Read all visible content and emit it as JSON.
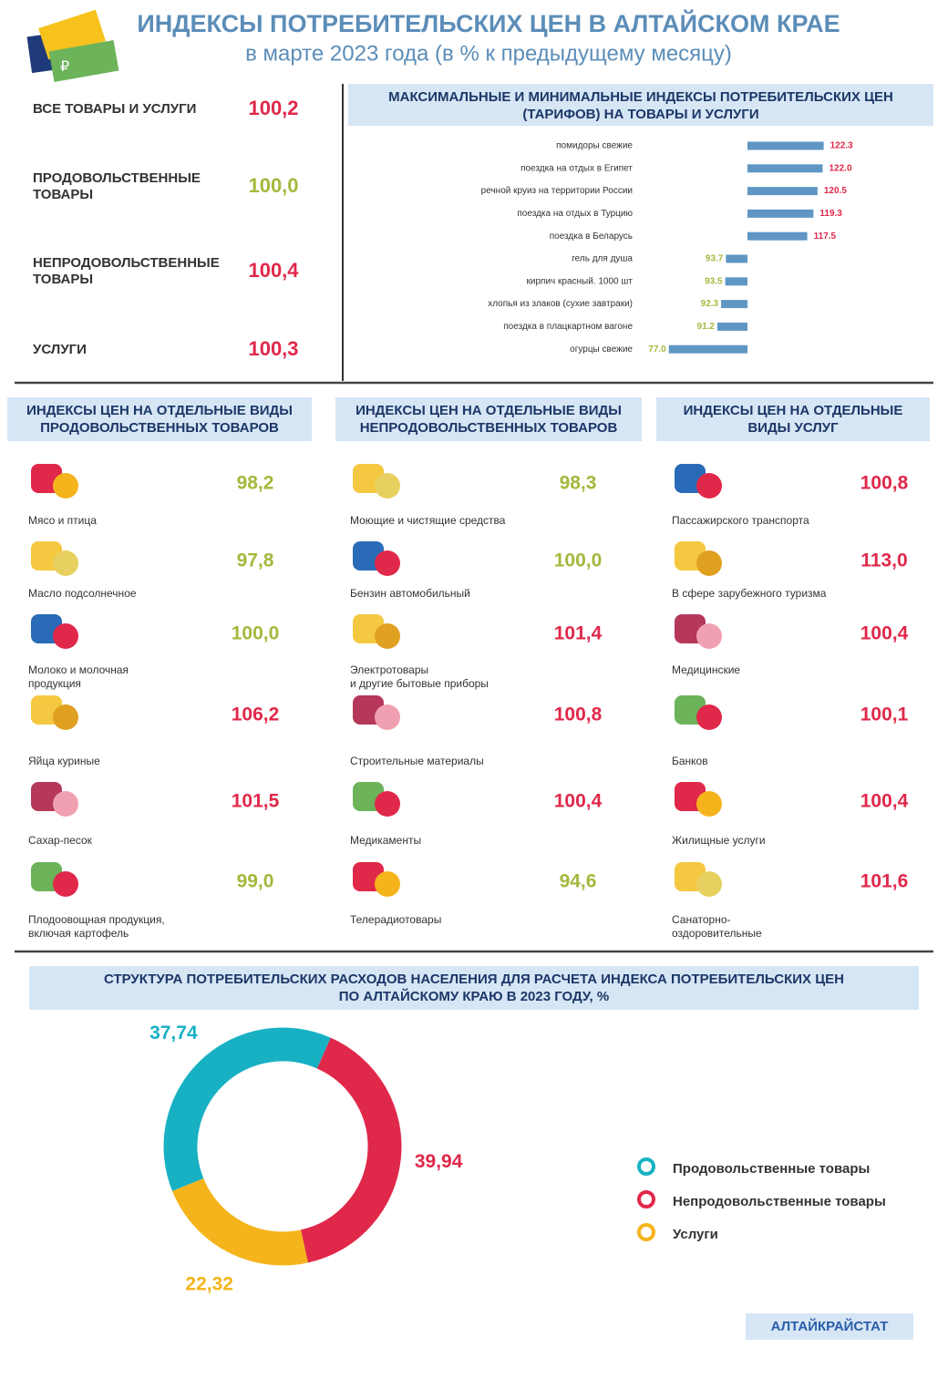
{
  "header": {
    "title": "ИНДЕКСЫ ПОТРЕБИТЕЛЬСКИХ ЦЕН  В  АЛТАЙСКОМ КРАЕ",
    "subtitle": "в марте 2023 года (в % к предыдущему месяцу)"
  },
  "summary": {
    "items": [
      {
        "label": [
          "ВСЕ ТОВАРЫ И УСЛУГИ"
        ],
        "value": "100,2",
        "color": "#e0284a"
      },
      {
        "label": [
          "ПРОДОВОЛЬСТВЕННЫЕ",
          "ТОВАРЫ"
        ],
        "value": "100,0",
        "color": "#a4b83c"
      },
      {
        "label": [
          "НЕПРОДОВОЛЬСТВЕННЫЕ",
          "ТОВАРЫ"
        ],
        "value": "100,4",
        "color": "#e0284a"
      },
      {
        "label": [
          "УСЛУГИ"
        ],
        "value": "100,3",
        "color": "#e0284a"
      }
    ]
  },
  "chart_data": [
    {
      "type": "bar",
      "orientation": "horizontal",
      "title": [
        "МАКСИМАЛЬНЫЕ И МИНИМАЛЬНЫЕ ИНДЕКСЫ  ПОТРЕБИТЕЛЬСКИХ ЦЕН",
        "(ТАРИФОВ) НА ТОВАРЫ  И УСЛУГИ"
      ],
      "categories": [
        "помидоры   свежие",
        "поездка  на отдых в Египет",
        "речной  круиз на территории России",
        "поездка  на отдых  в Турцию",
        "поездка  в Беларусь",
        "гель для  душа",
        "кирпич красный.  1000  шт",
        "хлопья из злаков (сухие завтраки)",
        "поездка  в плацкартном  вагоне",
        "огурцы свежие"
      ],
      "values": [
        122.3,
        122.0,
        120.5,
        119.3,
        117.5,
        93.7,
        93.5,
        92.3,
        91.2,
        77.0
      ],
      "value_labels": [
        "122.3",
        "122.0",
        "120.5",
        "119.3",
        "117.5",
        "93.7",
        "93.5",
        "92.3",
        "91.2",
        "77.0"
      ],
      "color": "#5f96c4",
      "label_colors": {
        "above": "#e0284a",
        "below": "#a4b83c"
      },
      "baseline": 100,
      "xlim": [
        76,
        124
      ]
    },
    {
      "type": "pie",
      "donut": true,
      "title": [
        "СТРУКТУРА ПОТРЕБИТЕЛЬСКИХ РАСХОДОВ  НАСЕЛЕНИЯ ДЛЯ РАСЧЕТА ИНДЕКСА ПОТРЕБИТЕЛЬСКИХ ЦЕН",
        "ПО АЛТАЙСКОМУ  КРАЮ В 2023 ГОДУ, %"
      ],
      "categories": [
        "Продовольственные товары",
        "Непродовольственные товары",
        "Услуги"
      ],
      "values": [
        37.74,
        39.94,
        22.32
      ],
      "value_labels": [
        "37,74",
        "39,94",
        "22,32"
      ],
      "colors": [
        "#17b1c3",
        "#e0284a",
        "#f5b41c"
      ],
      "legend": "right"
    }
  ],
  "sections": [
    {
      "title": [
        "ИНДЕКСЫ ЦЕН НА ОТДЕЛЬНЫЕ ВИДЫ",
        "ПРОДОВОЛЬСТВЕННЫХ ТОВАРОВ"
      ],
      "items": [
        {
          "label": [
            "Мясо и птица"
          ],
          "value": "98,2",
          "color": "#a4b83c"
        },
        {
          "label": [
            "Масло подсолнечное"
          ],
          "value": "97,8",
          "color": "#a4b83c"
        },
        {
          "label": [
            "Молоко и молочная",
            "продукция"
          ],
          "value": "100,0",
          "color": "#a4b83c"
        },
        {
          "label": [
            "Яйца  куриные"
          ],
          "value": "106,2",
          "color": "#e0284a"
        },
        {
          "label": [
            "Сахар-песок"
          ],
          "value": "101,5",
          "color": "#e0284a"
        },
        {
          "label": [
            "Плодоовощная продукция,",
            "включая картофель"
          ],
          "value": "99,0",
          "color": "#a4b83c"
        }
      ]
    },
    {
      "title": [
        "ИНДЕКСЫ ЦЕН НА ОТДЕЛЬНЫЕ ВИДЫ",
        "НЕПРОДОВОЛЬСТВЕННЫХ ТОВАРОВ"
      ],
      "items": [
        {
          "label": [
            "Моющие и чистящие  средства"
          ],
          "value": "98,3",
          "color": "#a4b83c"
        },
        {
          "label": [
            "Бензин  автомобильный"
          ],
          "value": "100,0",
          "color": "#a4b83c"
        },
        {
          "label": [
            "Электротовары",
            "и другие бытовые  приборы"
          ],
          "value": "101,4",
          "color": "#e0284a"
        },
        {
          "label": [
            "Строительные   материалы"
          ],
          "value": "100,8",
          "color": "#e0284a"
        },
        {
          "label": [
            "Медикаменты"
          ],
          "value": "100,4",
          "color": "#e0284a"
        },
        {
          "label": [
            "Телерадиотовары"
          ],
          "value": "94,6",
          "color": "#a4b83c"
        }
      ]
    },
    {
      "title": [
        "ИНДЕКСЫ ЦЕН НА ОТДЕЛЬНЫЕ",
        "ВИДЫ УСЛУГ"
      ],
      "items": [
        {
          "label": [
            "Пассажирского транспорта"
          ],
          "value": "100,8",
          "color": "#e0284a"
        },
        {
          "label": [
            "В сфере  зарубежного  туризма"
          ],
          "value": "113,0",
          "color": "#e0284a"
        },
        {
          "label": [
            "Медицинские"
          ],
          "value": "100,4",
          "color": "#e0284a"
        },
        {
          "label": [
            "Банков"
          ],
          "value": "100,1",
          "color": "#e0284a"
        },
        {
          "label": [
            "Жилищные  услуги"
          ],
          "value": "100,4",
          "color": "#e0284a"
        },
        {
          "label": [
            "Санаторно-",
            "оздоровительные"
          ],
          "value": "101,6",
          "color": "#e0284a"
        }
      ]
    }
  ],
  "footer": {
    "source": "АЛТАЙКРАЙСТАТ"
  }
}
